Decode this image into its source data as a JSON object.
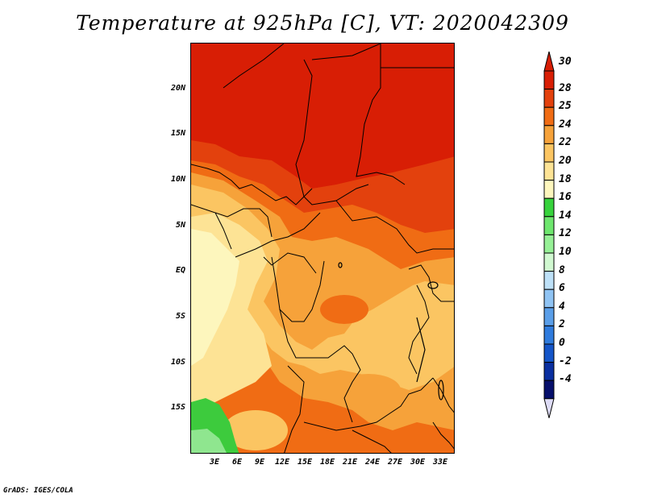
{
  "title": "Temperature at 925hPa [C], VT: 2020042309",
  "credit": "GrADS: IGES/COLA",
  "map": {
    "region": "Central Africa",
    "lon_range": [
      0,
      35
    ],
    "lat_range": [
      -20,
      25
    ],
    "lat_ticks": [
      "20N",
      "15N",
      "10N",
      "5N",
      "EQ",
      "5S",
      "10S",
      "15S"
    ],
    "lon_ticks": [
      "3E",
      "6E",
      "9E",
      "12E",
      "15E",
      "18E",
      "21E",
      "24E",
      "27E",
      "30E",
      "33E"
    ],
    "colors": {
      "t30_plus": "#d81e05",
      "t28": "#e3410d",
      "t25": "#f06c14",
      "t24": "#f6a23a",
      "t22": "#fbc562",
      "t20": "#fde395",
      "t18": "#fdf6bd",
      "green": "#3dcb3d",
      "light_green": "#8fe68f"
    }
  },
  "colorbar": {
    "labels": [
      "30",
      "28",
      "25",
      "24",
      "22",
      "20",
      "18",
      "16",
      "14",
      "12",
      "10",
      "8",
      "6",
      "4",
      "2",
      "0",
      "-2",
      "-4"
    ],
    "colors": [
      "#d81e05",
      "#e3410d",
      "#f06c14",
      "#f6a23a",
      "#fbc562",
      "#fde395",
      "#fdf6bd",
      "#37d23c",
      "#6ee66e",
      "#96f096",
      "#d0f8d0",
      "#bde0f7",
      "#8fc3f3",
      "#5a9ee8",
      "#2f7bdd",
      "#1455c8",
      "#0a2fa0",
      "#060f6b"
    ],
    "over_color": "#d81e05",
    "under_color": "#dedcf6"
  }
}
